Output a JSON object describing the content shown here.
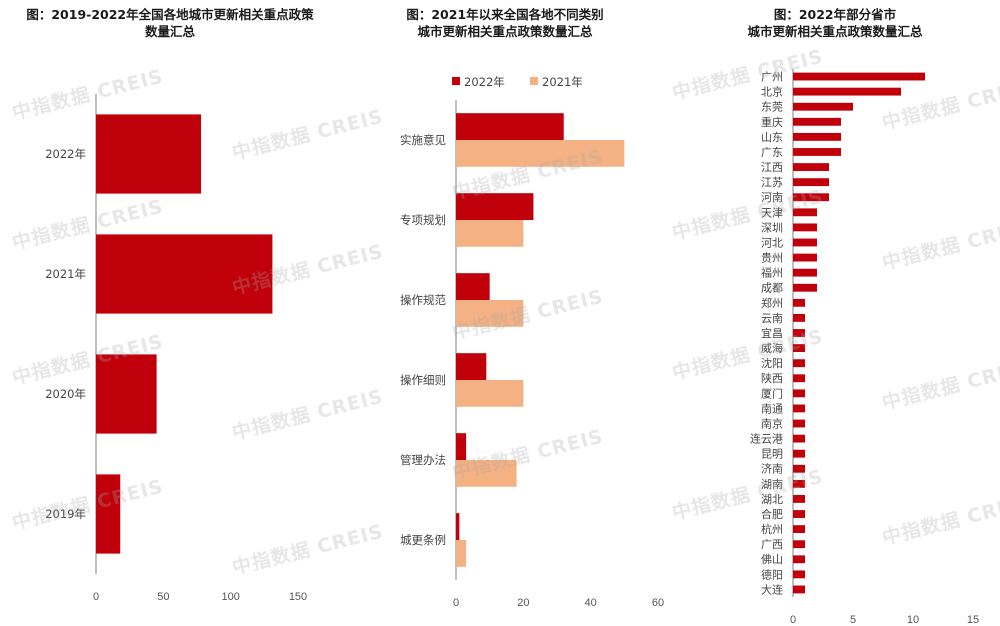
{
  "watermark": "中指数据 CREIS",
  "colors": {
    "primary": "#c0000b",
    "secondary": "#f4b183",
    "axis": "#7f7f7f"
  },
  "chart_data": [
    {
      "type": "bar",
      "orientation": "horizontal",
      "title_lines": [
        "图：2019-2022年全国各地城市更新相关重点政策",
        "数量汇总"
      ],
      "categories": [
        "2022年",
        "2021年",
        "2020年",
        "2019年"
      ],
      "series": [
        {
          "values": [
            78,
            131,
            45,
            18
          ]
        }
      ],
      "xlim": [
        0,
        150
      ],
      "xticks": [
        0,
        50,
        100,
        150
      ],
      "grid": false
    },
    {
      "type": "bar",
      "orientation": "horizontal",
      "title_lines": [
        "图：2021年以来全国各地不同类别",
        "城市更新相关重点政策数量汇总"
      ],
      "categories": [
        "实施意见",
        "专项规划",
        "操作规范",
        "操作细则",
        "管理办法",
        "城更条例"
      ],
      "series": [
        {
          "name": "2022年",
          "values": [
            32,
            23,
            10,
            9,
            3,
            1
          ]
        },
        {
          "name": "2021年",
          "values": [
            50,
            20,
            20,
            20,
            18,
            3
          ]
        }
      ],
      "legend": "top",
      "xlim": [
        0,
        60
      ],
      "xticks": [
        0,
        20,
        40,
        60
      ],
      "grid": false
    },
    {
      "type": "bar",
      "orientation": "horizontal",
      "title_lines": [
        "图：2022年部分省市",
        "城市更新相关重点政策数量汇总"
      ],
      "categories": [
        "广州",
        "北京",
        "东莞",
        "重庆",
        "山东",
        "广东",
        "江西",
        "江苏",
        "河南",
        "天津",
        "深圳",
        "河北",
        "贵州",
        "福州",
        "成都",
        "郑州",
        "云南",
        "宜昌",
        "威海",
        "沈阳",
        "陕西",
        "厦门",
        "南通",
        "南京",
        "连云港",
        "昆明",
        "济南",
        "湖南",
        "湖北",
        "合肥",
        "杭州",
        "广西",
        "佛山",
        "德阳",
        "大连"
      ],
      "series": [
        {
          "values": [
            11,
            9,
            5,
            4,
            4,
            4,
            3,
            3,
            3,
            2,
            2,
            2,
            2,
            2,
            2,
            1,
            1,
            1,
            1,
            1,
            1,
            1,
            1,
            1,
            1,
            1,
            1,
            1,
            1,
            1,
            1,
            1,
            1,
            1,
            1
          ]
        }
      ],
      "xlim": [
        0,
        15
      ],
      "xticks": [
        0,
        5,
        10,
        15
      ],
      "grid": false
    }
  ]
}
